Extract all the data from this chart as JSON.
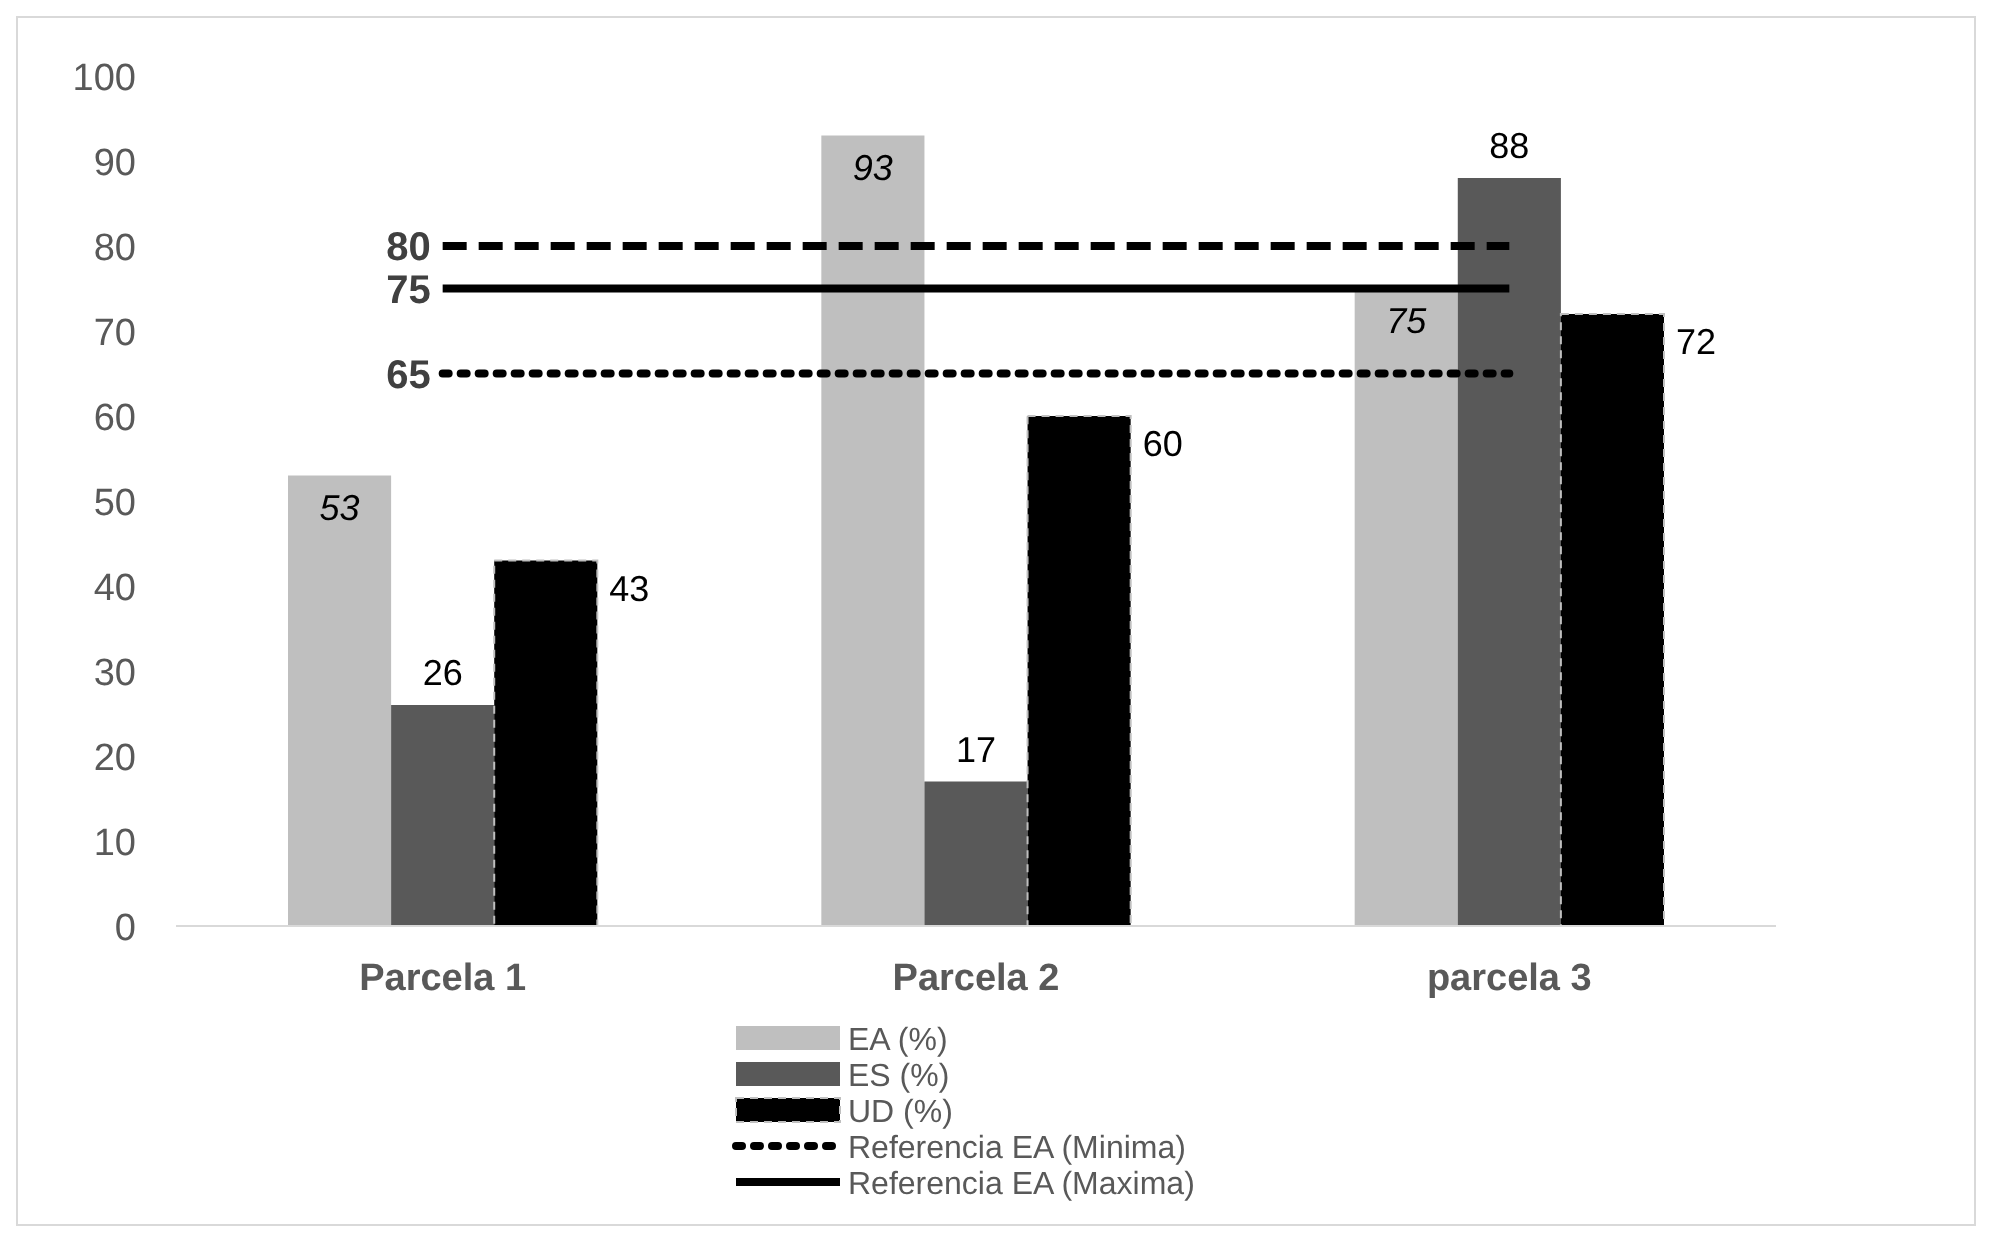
{
  "chart_data": {
    "type": "bar",
    "categories": [
      "Parcela 1",
      "Parcela 2",
      "parcela 3"
    ],
    "series": [
      {
        "name": "EA (%)",
        "color": "#bfbfbf",
        "values": [
          53,
          93,
          75
        ]
      },
      {
        "name": "ES (%)",
        "color": "#595959",
        "values": [
          26,
          17,
          88
        ]
      },
      {
        "name": "UD (%)",
        "color": "#000000",
        "values": [
          43,
          60,
          72
        ]
      },
      {
        "type": "line",
        "color": "#000000",
        "line_style": "dashed",
        "values": [
          80,
          80,
          80
        ],
        "value_labels": [
          "80",
          null,
          null
        ]
      },
      {
        "type": "line",
        "name": "Referencia EA (Minima)",
        "color": "#000000",
        "line_style": "dotted",
        "values": [
          65,
          65,
          65
        ],
        "value_labels": [
          "65",
          null,
          null
        ]
      },
      {
        "type": "line",
        "name": "Referencia EA (Maxima)",
        "color": "#000000",
        "line_style": "solid",
        "values": [
          75,
          75,
          75
        ],
        "value_labels": [
          "75",
          null,
          null
        ]
      }
    ],
    "ylim": [
      0,
      100
    ],
    "yticks": [
      0,
      10,
      20,
      30,
      40,
      50,
      60,
      70,
      80,
      90,
      100
    ],
    "grid": false,
    "legend": "bottom",
    "data_labels": true
  }
}
